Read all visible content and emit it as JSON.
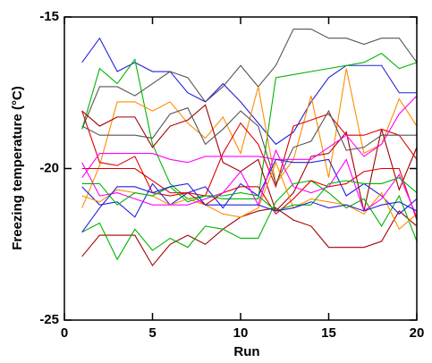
{
  "chart_data": {
    "type": "line",
    "x_label": "Run",
    "y_label": "Freezing temperature (°C)",
    "x": [
      1,
      2,
      3,
      4,
      5,
      6,
      7,
      8,
      9,
      10,
      11,
      12,
      13,
      14,
      15,
      16,
      17,
      18,
      19,
      20
    ],
    "xlim": [
      0,
      20
    ],
    "xticks": [
      0,
      5,
      10,
      15,
      20
    ],
    "ylim": [
      -25,
      -15
    ],
    "yticks": [
      -25,
      -20,
      -15
    ],
    "series": [
      {
        "color": "#2020e0",
        "values": [
          -16.5,
          -15.7,
          -16.8,
          -16.5,
          -16.8,
          -16.8,
          -17.5,
          -17.8,
          -17.2,
          -17.8,
          -18.5,
          -19.2,
          -18.8,
          -17.8,
          -17.0,
          -16.6,
          -16.6,
          -16.6,
          -17.5,
          -17.5
        ]
      },
      {
        "color": "#555555",
        "values": [
          -18.7,
          -17.3,
          -17.3,
          -17.6,
          -17.2,
          -16.8,
          -17.0,
          -17.8,
          -17.3,
          -16.6,
          -17.3,
          -16.6,
          -15.4,
          -15.4,
          -15.7,
          -15.7,
          -15.9,
          -15.7,
          -15.7,
          -16.5
        ]
      },
      {
        "color": "#00b400",
        "values": [
          -18.7,
          -16.7,
          -17.2,
          -16.4,
          -19.2,
          -20.5,
          -21.0,
          -20.9,
          -21.0,
          -21.0,
          -21.0,
          -17.0,
          -16.9,
          -16.8,
          -16.7,
          -16.6,
          -16.5,
          -16.2,
          -16.7,
          -16.5
        ]
      },
      {
        "color": "#ff8c00",
        "values": [
          -21.3,
          -19.9,
          -17.8,
          -17.8,
          -18.1,
          -17.8,
          -18.5,
          -19.0,
          -18.3,
          -19.5,
          -17.3,
          -20.5,
          -19.7,
          -17.6,
          -20.3,
          -16.7,
          -19.5,
          -19.2,
          -17.7,
          -18.6
        ]
      },
      {
        "color": "#a00000",
        "values": [
          -18.1,
          -18.6,
          -18.3,
          -18.3,
          -19.3,
          -18.6,
          -18.4,
          -17.9,
          -19.8,
          -20.1,
          -19.7,
          -21.4,
          -20.8,
          -19.6,
          -19.5,
          -18.8,
          -21.4,
          -18.7,
          -20.7,
          -19.3
        ]
      },
      {
        "color": "#e00000",
        "values": [
          -18.1,
          -19.8,
          -19.9,
          -19.6,
          -20.8,
          -20.9,
          -20.8,
          -20.9,
          -19.5,
          -18.5,
          -19.2,
          -20.6,
          -18.6,
          -18.4,
          -18.2,
          -18.9,
          -18.9,
          -18.7,
          -18.9,
          -19.7
        ]
      },
      {
        "color": "#ff00ff",
        "values": [
          -20.3,
          -19.5,
          -19.5,
          -19.5,
          -19.5,
          -19.7,
          -19.8,
          -19.6,
          -19.6,
          -19.6,
          -19.6,
          -19.7,
          -19.7,
          -19.7,
          -19.3,
          -18.9,
          -19.6,
          -19.2,
          -18.2,
          -17.6
        ]
      },
      {
        "color": "#a00000",
        "values": [
          -22.9,
          -22.2,
          -22.2,
          -22.2,
          -23.2,
          -22.5,
          -22.2,
          -22.5,
          -22.0,
          -21.6,
          -21.4,
          -21.3,
          -21.7,
          -21.9,
          -22.6,
          -22.6,
          -22.6,
          -22.4,
          -21.4,
          -21.9
        ]
      },
      {
        "color": "#00b400",
        "values": [
          -22.1,
          -21.8,
          -23.0,
          -22.0,
          -22.7,
          -22.3,
          -22.6,
          -21.9,
          -22.0,
          -22.3,
          -22.3,
          -21.1,
          -20.5,
          -20.4,
          -20.8,
          -21.3,
          -21.0,
          -21.9,
          -20.9,
          -22.4
        ]
      },
      {
        "color": "#2020e0",
        "values": [
          -20.6,
          -21.2,
          -21.1,
          -21.6,
          -20.5,
          -21.2,
          -20.8,
          -20.6,
          -21.3,
          -20.5,
          -20.9,
          -19.7,
          -19.8,
          -19.8,
          -19.7,
          -20.9,
          -20.5,
          -20.9,
          -21.5,
          -21.0
        ]
      },
      {
        "color": "#555555",
        "values": [
          -18.6,
          -18.9,
          -18.9,
          -18.9,
          -19.0,
          -18.2,
          -18.0,
          -19.2,
          -18.7,
          -18.1,
          -18.6,
          -20.5,
          -19.3,
          -19.1,
          -18.1,
          -19.4,
          -19.3,
          -18.9,
          -18.9,
          -18.9
        ]
      },
      {
        "color": "#ff8c00",
        "values": [
          -20.9,
          -21.1,
          -20.7,
          -20.8,
          -20.9,
          -21.2,
          -21.0,
          -21.2,
          -21.5,
          -21.6,
          -21.3,
          -19.8,
          -21.3,
          -21.0,
          -21.1,
          -21.2,
          -21.5,
          -20.8,
          -22.0,
          -21.5
        ]
      },
      {
        "color": "#e00000",
        "values": [
          -20.0,
          -20.0,
          -20.0,
          -20.0,
          -20.4,
          -20.8,
          -20.8,
          -21.2,
          -20.8,
          -20.6,
          -20.6,
          -21.5,
          -21.0,
          -20.4,
          -20.6,
          -20.5,
          -20.1,
          -20.0,
          -20.0,
          -21.7
        ]
      },
      {
        "color": "#ff00ff",
        "values": [
          -19.8,
          -20.9,
          -20.8,
          -21.0,
          -21.2,
          -21.2,
          -21.2,
          -21.0,
          -20.8,
          -20.1,
          -21.2,
          -19.4,
          -20.6,
          -20.8,
          -20.6,
          -19.7,
          -21.4,
          -21.0,
          -20.2,
          -21.6
        ]
      },
      {
        "color": "#00b400",
        "values": [
          -20.5,
          -20.5,
          -21.2,
          -20.8,
          -20.9,
          -20.6,
          -21.1,
          -20.9,
          -20.9,
          -20.8,
          -20.9,
          -21.4,
          -21.2,
          -21.2,
          -20.5,
          -20.4,
          -20.5,
          -20.5,
          -20.3,
          -20.8
        ]
      },
      {
        "color": "#2020e0",
        "values": [
          -22.1,
          -21.3,
          -20.6,
          -20.6,
          -20.8,
          -20.6,
          -20.5,
          -21.2,
          -21.2,
          -21.2,
          -21.2,
          -21.4,
          -21.3,
          -21.1,
          -21.3,
          -21.2,
          -21.4,
          -21.2,
          -21.1,
          -21.4
        ]
      }
    ]
  }
}
